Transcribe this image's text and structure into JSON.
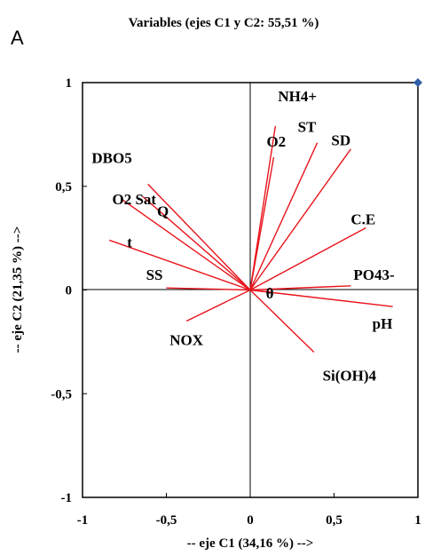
{
  "chart_data": {
    "type": "scatter",
    "panel_label": "A",
    "title": "Variables (ejes C1 y C2: 55,51 %)",
    "xlabel": "-- eje C1 (34,16 %) -->",
    "ylabel": "-- eje C2 (21,35 %) -->",
    "xlim": [
      -1,
      1
    ],
    "ylim": [
      -1,
      1
    ],
    "xticks": [
      "-1",
      "-0,5",
      "0",
      "0,5",
      "1"
    ],
    "yticks": [
      "-1",
      "-0,5",
      "0",
      "0,5",
      "1"
    ],
    "grid": false,
    "vector_color": "#e8141c",
    "marker_color": "#2e5fa8",
    "marker": {
      "x": 1,
      "y": 1
    },
    "vectors": [
      {
        "label": "NH4+",
        "x": 0.15,
        "y": 0.79
      },
      {
        "label": "O2",
        "x": 0.14,
        "y": 0.64
      },
      {
        "label": "ST",
        "x": 0.4,
        "y": 0.71
      },
      {
        "label": "SD",
        "x": 0.6,
        "y": 0.68
      },
      {
        "label": "DBO5",
        "x": -0.61,
        "y": 0.51
      },
      {
        "label": "O2 Sat",
        "x": -0.77,
        "y": 0.44
      },
      {
        "label": "Q",
        "x": -0.64,
        "y": 0.45
      },
      {
        "label": "t",
        "x": -0.84,
        "y": 0.24
      },
      {
        "label": "C.E",
        "x": 0.69,
        "y": 0.3
      },
      {
        "label": "PO43-",
        "x": 0.6,
        "y": 0.02
      },
      {
        "label": "SS",
        "x": -0.5,
        "y": 0.01
      },
      {
        "label": "θ",
        "x": 0.12,
        "y": -0.01
      },
      {
        "label": "pH",
        "x": 0.85,
        "y": -0.08
      },
      {
        "label": "NOX",
        "x": -0.38,
        "y": -0.15
      },
      {
        "label": "Si(OH)4",
        "x": 0.38,
        "y": -0.3
      }
    ]
  },
  "text": {
    "panel": "A",
    "title": "Variables (ejes C1 y C2: 55,51 %)",
    "xlabel": "-- eje C1 (34,16 %) -->",
    "ylabel": "-- eje C2 (21,35 %) -->"
  }
}
